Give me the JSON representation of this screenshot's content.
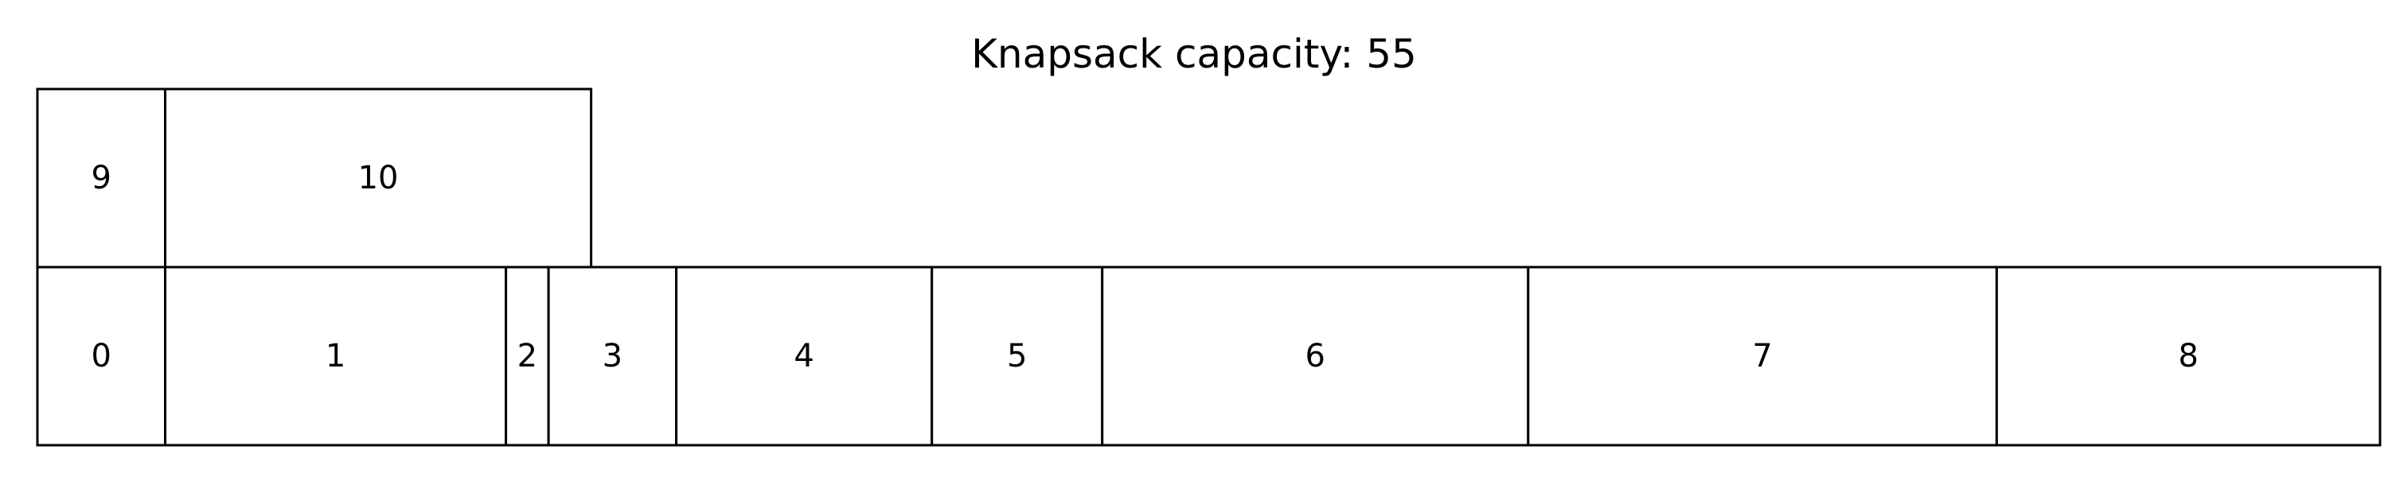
{
  "title": "Knapsack capacity: 55",
  "chart_data": {
    "type": "packing-diagram",
    "capacity": 55,
    "rows": [
      {
        "items": [
          {
            "label": "0",
            "size": 3
          },
          {
            "label": "1",
            "size": 8
          },
          {
            "label": "2",
            "size": 1
          },
          {
            "label": "3",
            "size": 3
          },
          {
            "label": "4",
            "size": 6
          },
          {
            "label": "5",
            "size": 4
          },
          {
            "label": "6",
            "size": 10
          },
          {
            "label": "7",
            "size": 11
          },
          {
            "label": "8",
            "size": 9
          }
        ]
      },
      {
        "items": [
          {
            "label": "9",
            "size": 3
          },
          {
            "label": "10",
            "size": 10
          }
        ]
      }
    ]
  }
}
